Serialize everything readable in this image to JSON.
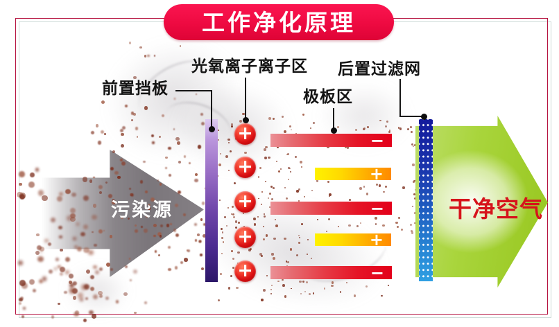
{
  "banner": {
    "title": "工作净化原理"
  },
  "labels": {
    "front_baffle": "前置挡板",
    "ion_zone": "光氧离子离子区",
    "plate_zone": "极板区",
    "rear_filter": "后置过滤网"
  },
  "source_arrow": {
    "label": "污染源"
  },
  "clean_arrow": {
    "label": "干净空气"
  },
  "ion_circles": {
    "count": 5,
    "sign": "+"
  },
  "plates": {
    "rows": [
      {
        "type": "negative",
        "sign": "−"
      },
      {
        "type": "positive",
        "sign": "+"
      },
      {
        "type": "negative",
        "sign": "−"
      },
      {
        "type": "positive",
        "sign": "+"
      },
      {
        "type": "negative",
        "sign": "−"
      }
    ]
  },
  "colors": {
    "banner_red": "#ee0a41",
    "border_red": "#b5123f",
    "baffle_purple": "#4c2b91",
    "ion_red": "#d90f12",
    "plate_negative_red": "#e3001a",
    "plate_positive_yellow": "#ffd800",
    "plate_positive_orange": "#ff8a00",
    "filter_blue_top": "#131a9c",
    "filter_blue_bottom": "#2f9fe2",
    "clean_green": "#a9d53c",
    "clean_text_red": "#d6131b",
    "source_gray": "#7b767b",
    "particle_brown": "#8a4130"
  }
}
